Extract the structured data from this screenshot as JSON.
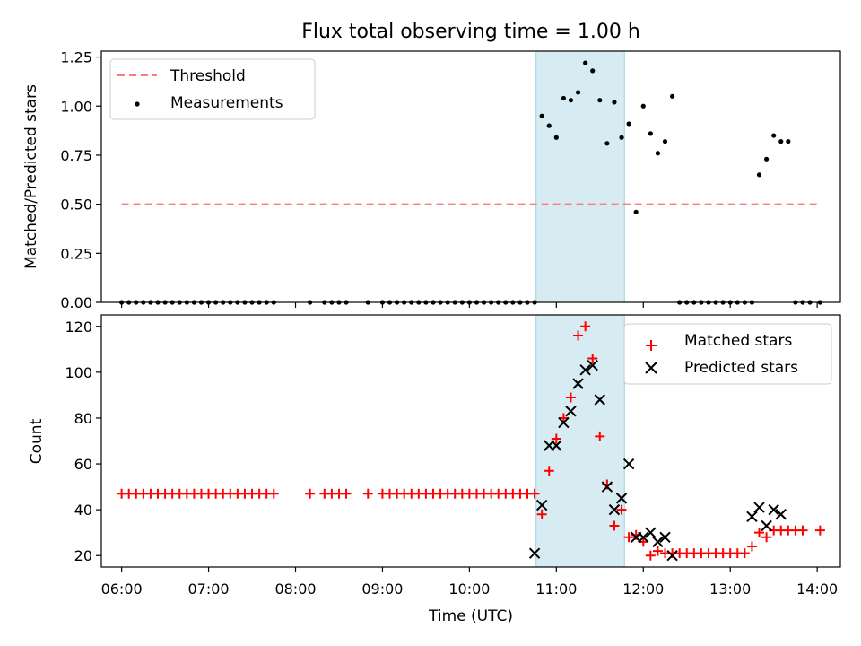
{
  "figure_title": "Flux total observing time = 1.00 h",
  "chart_data": [
    {
      "type": "scatter",
      "ylabel": "Matched/Predicted stars",
      "ylim": [
        0,
        1.28
      ],
      "yticks": [
        "0.00",
        "0.25",
        "0.50",
        "0.75",
        "1.00",
        "1.25"
      ],
      "xlim": [
        "05:46",
        "14:16"
      ],
      "xticks": [],
      "highlight_span": {
        "from": "10:46",
        "to": "11:47",
        "color": "#add8e6"
      },
      "threshold": {
        "name": "Threshold",
        "value": 0.5,
        "from": "06:00",
        "to": "14:02",
        "color": "#ff7b7b",
        "style": "dashed"
      },
      "legend_position": "upper left",
      "series": [
        {
          "name": "Measurements",
          "color": "#000000",
          "marker": "dot",
          "points": [
            [
              "06:00",
              0
            ],
            [
              "06:05",
              0
            ],
            [
              "06:10",
              0
            ],
            [
              "06:15",
              0
            ],
            [
              "06:20",
              0
            ],
            [
              "06:25",
              0
            ],
            [
              "06:30",
              0
            ],
            [
              "06:35",
              0
            ],
            [
              "06:40",
              0
            ],
            [
              "06:45",
              0
            ],
            [
              "06:50",
              0
            ],
            [
              "06:55",
              0
            ],
            [
              "07:00",
              0
            ],
            [
              "07:05",
              0
            ],
            [
              "07:10",
              0
            ],
            [
              "07:15",
              0
            ],
            [
              "07:20",
              0
            ],
            [
              "07:25",
              0
            ],
            [
              "07:30",
              0
            ],
            [
              "07:35",
              0
            ],
            [
              "07:40",
              0
            ],
            [
              "07:45",
              0
            ],
            [
              "08:10",
              0
            ],
            [
              "08:20",
              0
            ],
            [
              "08:25",
              0
            ],
            [
              "08:30",
              0
            ],
            [
              "08:35",
              0
            ],
            [
              "08:50",
              0
            ],
            [
              "09:00",
              0
            ],
            [
              "09:05",
              0
            ],
            [
              "09:10",
              0
            ],
            [
              "09:15",
              0
            ],
            [
              "09:20",
              0
            ],
            [
              "09:25",
              0
            ],
            [
              "09:30",
              0
            ],
            [
              "09:35",
              0
            ],
            [
              "09:40",
              0
            ],
            [
              "09:45",
              0
            ],
            [
              "09:50",
              0
            ],
            [
              "09:55",
              0
            ],
            [
              "10:00",
              0
            ],
            [
              "10:05",
              0
            ],
            [
              "10:10",
              0
            ],
            [
              "10:15",
              0
            ],
            [
              "10:20",
              0
            ],
            [
              "10:25",
              0
            ],
            [
              "10:30",
              0
            ],
            [
              "10:35",
              0
            ],
            [
              "10:40",
              0
            ],
            [
              "10:45",
              0
            ],
            [
              "10:50",
              0.95
            ],
            [
              "10:55",
              0.9
            ],
            [
              "11:00",
              0.84
            ],
            [
              "11:05",
              1.04
            ],
            [
              "11:10",
              1.03
            ],
            [
              "11:15",
              1.07
            ],
            [
              "11:20",
              1.22
            ],
            [
              "11:25",
              1.18
            ],
            [
              "11:30",
              1.03
            ],
            [
              "11:35",
              0.81
            ],
            [
              "11:40",
              1.02
            ],
            [
              "11:45",
              0.84
            ],
            [
              "11:50",
              0.91
            ],
            [
              "11:55",
              0.46
            ],
            [
              "12:00",
              1.0
            ],
            [
              "12:05",
              0.86
            ],
            [
              "12:10",
              0.76
            ],
            [
              "12:15",
              0.82
            ],
            [
              "12:20",
              1.05
            ],
            [
              "12:25",
              0
            ],
            [
              "12:30",
              0
            ],
            [
              "12:35",
              0
            ],
            [
              "12:40",
              0
            ],
            [
              "12:45",
              0
            ],
            [
              "12:50",
              0
            ],
            [
              "12:55",
              0
            ],
            [
              "13:00",
              0
            ],
            [
              "13:05",
              0
            ],
            [
              "13:10",
              0
            ],
            [
              "13:15",
              0
            ],
            [
              "13:20",
              0.65
            ],
            [
              "13:25",
              0.73
            ],
            [
              "13:30",
              0.85
            ],
            [
              "13:35",
              0.82
            ],
            [
              "13:40",
              0.82
            ],
            [
              "13:45",
              0
            ],
            [
              "13:50",
              0
            ],
            [
              "13:55",
              0
            ],
            [
              "14:02",
              0
            ]
          ]
        }
      ]
    },
    {
      "type": "scatter",
      "xlabel": "Time (UTC)",
      "ylabel": "Count",
      "ylim": [
        15,
        125
      ],
      "yticks": [
        "20",
        "40",
        "60",
        "80",
        "100",
        "120"
      ],
      "xlim": [
        "05:46",
        "14:16"
      ],
      "xticks": [
        "06:00",
        "07:00",
        "08:00",
        "09:00",
        "10:00",
        "11:00",
        "12:00",
        "13:00",
        "14:00"
      ],
      "highlight_span": {
        "from": "10:46",
        "to": "11:47",
        "color": "#add8e6"
      },
      "legend_position": "upper right",
      "series": [
        {
          "name": "Matched stars",
          "color": "#ff0000",
          "marker": "plus",
          "points": [
            [
              "06:00",
              47
            ],
            [
              "06:05",
              47
            ],
            [
              "06:10",
              47
            ],
            [
              "06:15",
              47
            ],
            [
              "06:20",
              47
            ],
            [
              "06:25",
              47
            ],
            [
              "06:30",
              47
            ],
            [
              "06:35",
              47
            ],
            [
              "06:40",
              47
            ],
            [
              "06:45",
              47
            ],
            [
              "06:50",
              47
            ],
            [
              "06:55",
              47
            ],
            [
              "07:00",
              47
            ],
            [
              "07:05",
              47
            ],
            [
              "07:10",
              47
            ],
            [
              "07:15",
              47
            ],
            [
              "07:20",
              47
            ],
            [
              "07:25",
              47
            ],
            [
              "07:30",
              47
            ],
            [
              "07:35",
              47
            ],
            [
              "07:40",
              47
            ],
            [
              "07:45",
              47
            ],
            [
              "08:10",
              47
            ],
            [
              "08:20",
              47
            ],
            [
              "08:25",
              47
            ],
            [
              "08:30",
              47
            ],
            [
              "08:35",
              47
            ],
            [
              "08:50",
              47
            ],
            [
              "09:00",
              47
            ],
            [
              "09:05",
              47
            ],
            [
              "09:10",
              47
            ],
            [
              "09:15",
              47
            ],
            [
              "09:20",
              47
            ],
            [
              "09:25",
              47
            ],
            [
              "09:30",
              47
            ],
            [
              "09:35",
              47
            ],
            [
              "09:40",
              47
            ],
            [
              "09:45",
              47
            ],
            [
              "09:50",
              47
            ],
            [
              "09:55",
              47
            ],
            [
              "10:00",
              47
            ],
            [
              "10:05",
              47
            ],
            [
              "10:10",
              47
            ],
            [
              "10:15",
              47
            ],
            [
              "10:20",
              47
            ],
            [
              "10:25",
              47
            ],
            [
              "10:30",
              47
            ],
            [
              "10:35",
              47
            ],
            [
              "10:40",
              47
            ],
            [
              "10:45",
              47
            ],
            [
              "10:50",
              38
            ],
            [
              "10:55",
              57
            ],
            [
              "11:00",
              71
            ],
            [
              "11:05",
              80
            ],
            [
              "11:10",
              89
            ],
            [
              "11:15",
              116
            ],
            [
              "11:20",
              120
            ],
            [
              "11:25",
              106
            ],
            [
              "11:30",
              72
            ],
            [
              "11:35",
              51
            ],
            [
              "11:40",
              33
            ],
            [
              "11:45",
              40
            ],
            [
              "11:50",
              28
            ],
            [
              "11:55",
              29
            ],
            [
              "12:00",
              26
            ],
            [
              "12:05",
              20
            ],
            [
              "12:10",
              22
            ],
            [
              "12:15",
              21
            ],
            [
              "12:20",
              21
            ],
            [
              "12:25",
              21
            ],
            [
              "12:30",
              21
            ],
            [
              "12:35",
              21
            ],
            [
              "12:40",
              21
            ],
            [
              "12:45",
              21
            ],
            [
              "12:50",
              21
            ],
            [
              "12:55",
              21
            ],
            [
              "13:00",
              21
            ],
            [
              "13:05",
              21
            ],
            [
              "13:10",
              21
            ],
            [
              "13:15",
              24
            ],
            [
              "13:20",
              30
            ],
            [
              "13:25",
              28
            ],
            [
              "13:30",
              31
            ],
            [
              "13:35",
              31
            ],
            [
              "13:40",
              31
            ],
            [
              "13:45",
              31
            ],
            [
              "13:50",
              31
            ],
            [
              "14:02",
              31
            ]
          ]
        },
        {
          "name": "Predicted stars",
          "color": "#000000",
          "marker": "x",
          "points": [
            [
              "10:45",
              21
            ],
            [
              "10:50",
              42
            ],
            [
              "10:55",
              68
            ],
            [
              "11:00",
              68
            ],
            [
              "11:05",
              78
            ],
            [
              "11:10",
              83
            ],
            [
              "11:15",
              95
            ],
            [
              "11:20",
              101
            ],
            [
              "11:25",
              103
            ],
            [
              "11:30",
              88
            ],
            [
              "11:35",
              50
            ],
            [
              "11:40",
              40
            ],
            [
              "11:45",
              45
            ],
            [
              "11:50",
              60
            ],
            [
              "11:55",
              28
            ],
            [
              "12:00",
              28
            ],
            [
              "12:05",
              30
            ],
            [
              "12:10",
              26
            ],
            [
              "12:15",
              28
            ],
            [
              "12:20",
              20
            ],
            [
              "13:15",
              37
            ],
            [
              "13:20",
              41
            ],
            [
              "13:25",
              33
            ],
            [
              "13:30",
              40
            ],
            [
              "13:35",
              38
            ]
          ]
        }
      ]
    }
  ]
}
